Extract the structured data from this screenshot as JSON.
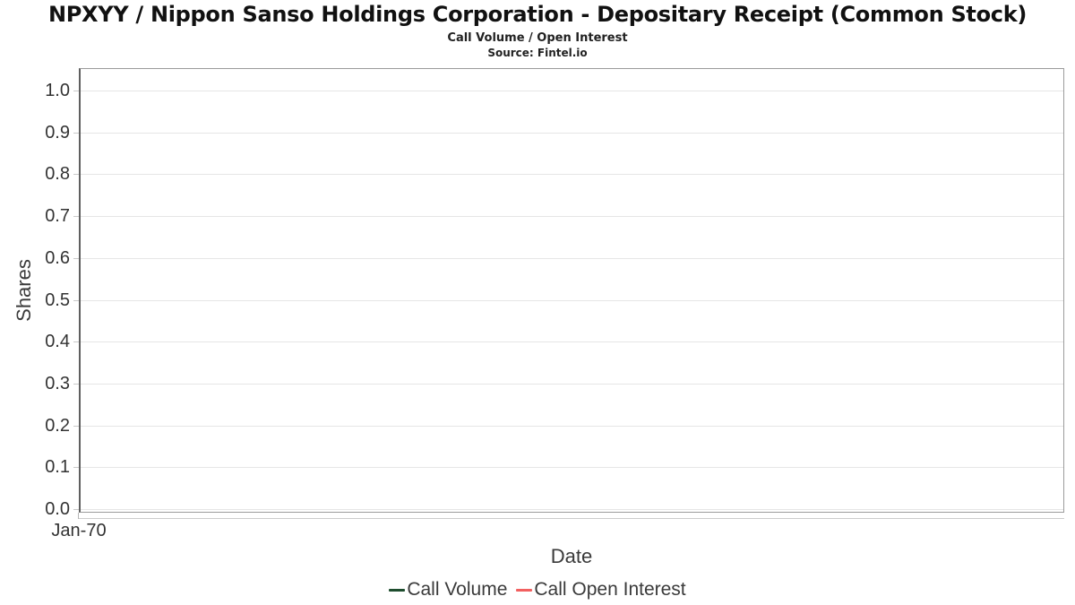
{
  "header": {
    "title": "NPXYY / Nippon Sanso Holdings Corporation - Depositary Receipt (Common Stock)",
    "subtitle": "Call Volume / Open Interest",
    "source": "Source: Fintel.io"
  },
  "chart_data": {
    "type": "line",
    "title": "NPXYY / Nippon Sanso Holdings Corporation - Depositary Receipt (Common Stock)",
    "subtitle": "Call Volume / Open Interest",
    "source": "Source: Fintel.io",
    "xlabel": "Date",
    "ylabel": "Shares",
    "ylim": [
      -0.006,
      1.051
    ],
    "yticks": [
      0.0,
      0.1,
      0.2,
      0.3,
      0.4,
      0.5,
      0.6,
      0.7,
      0.8,
      0.9,
      1.0
    ],
    "ytick_labels": [
      "0.0",
      "0.1",
      "0.2",
      "0.3",
      "0.4",
      "0.5",
      "0.6",
      "0.7",
      "0.8",
      "0.9",
      "1.0"
    ],
    "xtick_labels": [
      "Jan-70"
    ],
    "grid": true,
    "legend_position": "bottom",
    "series": [
      {
        "name": "Call Volume",
        "color": "#1e4d2e",
        "x": [],
        "values": []
      },
      {
        "name": "Call Open Interest",
        "color": "#f26060",
        "x": [],
        "values": []
      }
    ]
  },
  "colors": {
    "plot_border": "#9b9b9b",
    "y_axis_line": "#5f5f5f",
    "x_axis_line": "#cccccc",
    "gridline": "#e6e6e6",
    "tick_text": "#333333",
    "axis_title_text": "#3a3a3a",
    "title_text": "#111111"
  }
}
